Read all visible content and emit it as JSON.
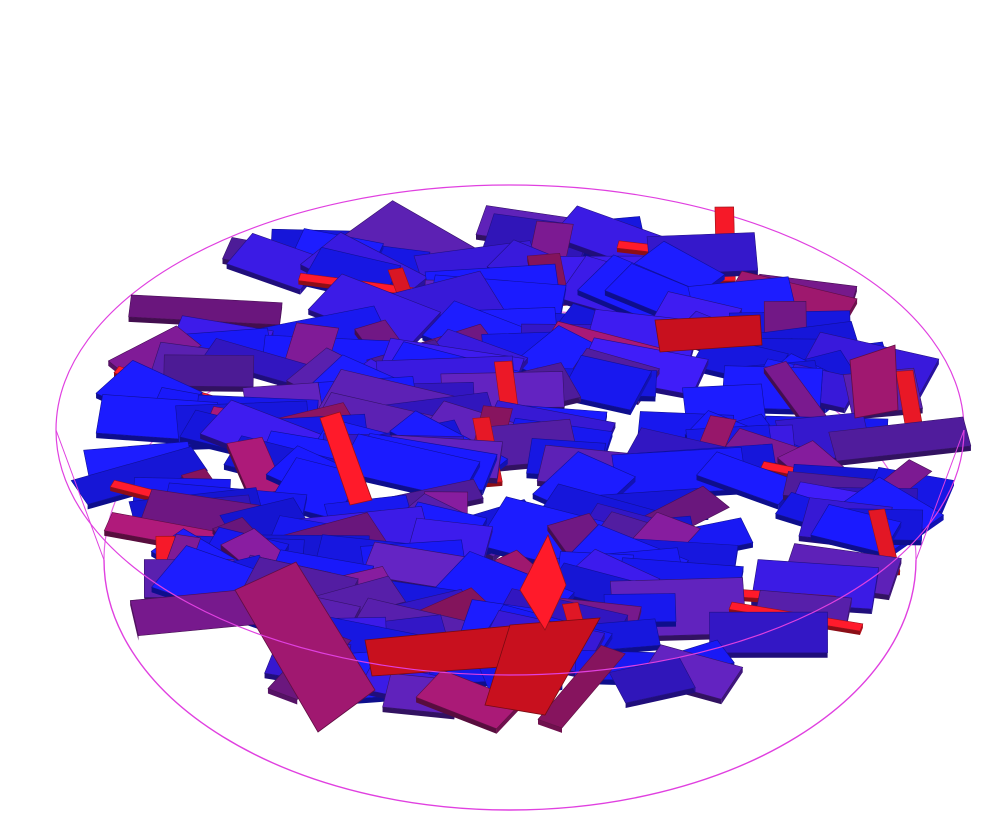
{
  "scene": {
    "background": "#ffffff",
    "container_color": "#e040e0",
    "colors": {
      "blue": "#1a1aff",
      "blue_dark": "#1010c0",
      "indigo": "#3a1ae0",
      "violet": "#5a20b0",
      "purple": "#7a1a90",
      "magenta": "#a01870",
      "red": "#ff1a2a",
      "red_dark": "#c8101e"
    },
    "flake_count": 260,
    "random_seed": 7
  }
}
